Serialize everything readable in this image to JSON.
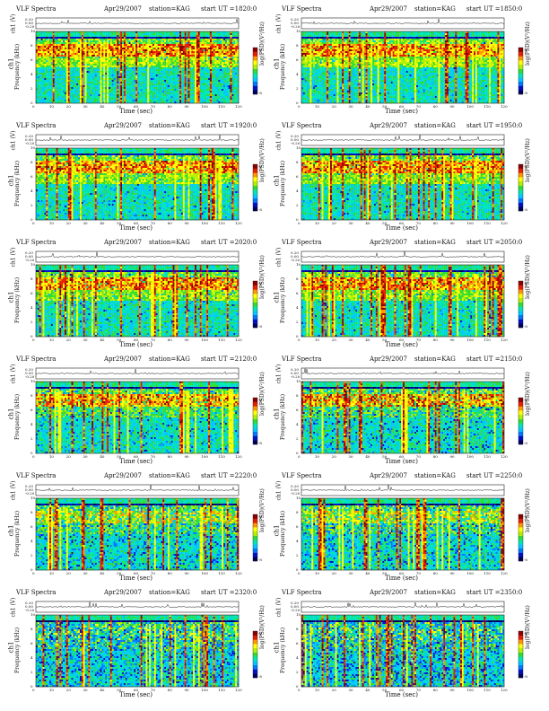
{
  "chart_data": [
    {
      "type": "heatmap",
      "title": "VLF Spectra",
      "date": "Apr29/2007",
      "station": "station=KAG",
      "start": "start UT =1820:0",
      "row": 0,
      "col": 0,
      "profile": "A",
      "darkTop": 0.05
    },
    {
      "type": "heatmap",
      "title": "VLF Spectra",
      "date": "Apr29/2007",
      "station": "station=KAG",
      "start": "start UT =1850:0",
      "row": 0,
      "col": 1,
      "profile": "A",
      "darkTop": 0.05
    },
    {
      "type": "heatmap",
      "title": "VLF Spectra",
      "date": "Apr29/2007",
      "station": "station=KAG",
      "start": "start UT =1920:0",
      "row": 1,
      "col": 0,
      "profile": "A",
      "darkTop": 0.08
    },
    {
      "type": "heatmap",
      "title": "VLF Spectra",
      "date": "Apr29/2007",
      "station": "station=KAG",
      "start": "start UT =1950:0",
      "row": 1,
      "col": 1,
      "profile": "A",
      "darkTop": 0.08
    },
    {
      "type": "heatmap",
      "title": "VLF Spectra",
      "date": "Apr29/2007",
      "station": "station=KAG",
      "start": "start UT =2020:0",
      "row": 2,
      "col": 0,
      "profile": "A",
      "darkTop": 0.1
    },
    {
      "type": "heatmap",
      "title": "VLF Spectra",
      "date": "Apr29/2007",
      "station": "station=KAG",
      "start": "start UT =2050:0",
      "row": 2,
      "col": 1,
      "profile": "A",
      "darkTop": 0.1
    },
    {
      "type": "heatmap",
      "title": "VLF Spectra",
      "date": "Apr29/2007",
      "station": "station=KAG",
      "start": "start UT =2120:0",
      "row": 3,
      "col": 0,
      "profile": "B",
      "darkTop": 0.2
    },
    {
      "type": "heatmap",
      "title": "VLF Spectra",
      "date": "Apr29/2007",
      "station": "station=KAG",
      "start": "start UT =2150:0",
      "row": 3,
      "col": 1,
      "profile": "B",
      "darkTop": 0.25
    },
    {
      "type": "heatmap",
      "title": "VLF Spectra",
      "date": "Apr29/2007",
      "station": "station=KAG",
      "start": "start UT =2220:0",
      "row": 4,
      "col": 0,
      "profile": "C",
      "darkTop": 0.35
    },
    {
      "type": "heatmap",
      "title": "VLF Spectra",
      "date": "Apr29/2007",
      "station": "station=KAG",
      "start": "start UT =2250:0",
      "row": 4,
      "col": 1,
      "profile": "C",
      "darkTop": 0.4
    },
    {
      "type": "heatmap",
      "title": "VLF Spectra",
      "date": "Apr29/2007",
      "station": "station=KAG",
      "start": "start UT =2320:0",
      "row": 5,
      "col": 0,
      "profile": "D",
      "darkTop": 0.55
    },
    {
      "type": "heatmap",
      "title": "VLF Spectra",
      "date": "Apr29/2007",
      "station": "station=KAG",
      "start": "start UT =2350:0",
      "row": 5,
      "col": 1,
      "profile": "D",
      "darkTop": 0.6
    }
  ],
  "axes": {
    "xlabel": "Time (sec)",
    "ylabel_left": "ch1",
    "ylabel_freq": "Frequency (kHz)",
    "ts_label": "ch1 (V)",
    "ts_ticks": [
      "0.20",
      "0.00",
      "-0.20"
    ],
    "xticks": [
      "0",
      "10",
      "20",
      "30",
      "40",
      "50",
      "60",
      "70",
      "80",
      "90",
      "100",
      "110",
      "120"
    ],
    "yticks": [
      "0",
      "2",
      "4",
      "6",
      "8",
      "10"
    ],
    "xlim": [
      0,
      120
    ],
    "ylim": [
      0,
      10
    ],
    "colorbar_label": "log(PSD)(V²/Hz)",
    "colorbar_ticks": [
      "-6",
      "-8"
    ]
  },
  "colors": {
    "cmap": [
      "#00005a",
      "#0010c8",
      "#0078ff",
      "#00c8ff",
      "#00e6b4",
      "#32dc32",
      "#b4f000",
      "#ffff00",
      "#ff9600",
      "#e61e00",
      "#8c0000"
    ],
    "line": "#111111"
  }
}
